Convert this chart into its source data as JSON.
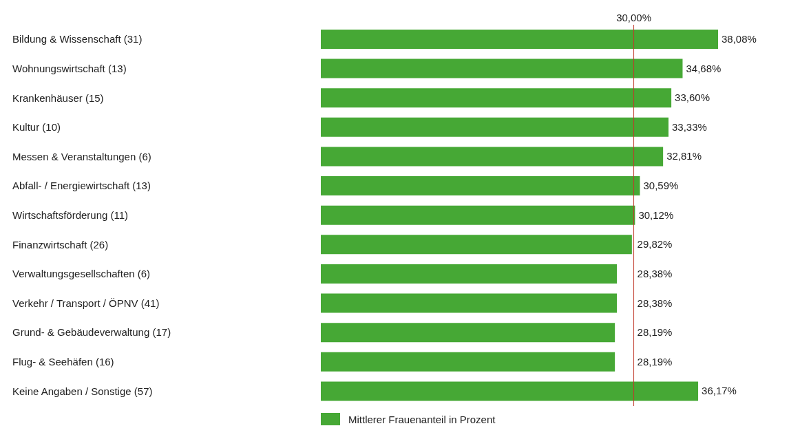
{
  "chart_data": {
    "type": "bar",
    "orientation": "horizontal",
    "categories": [
      "Bildung & Wissenschaft (31)",
      "Wohnungswirtschaft (13)",
      "Krankenhäuser (15)",
      "Kultur (10)",
      "Messen & Veranstaltungen (6)",
      "Abfall- / Energiewirtschaft (13)",
      "Wirtschaftsförderung (11)",
      "Finanzwirtschaft (26)",
      "Verwaltungsgesellschaften (6)",
      "Verkehr / Transport / ÖPNV (41)",
      "Grund- & Gebäudeverwaltung (17)",
      "Flug- & Seehäfen (16)",
      "Keine Angaben / Sonstige (57)"
    ],
    "series": [
      {
        "name": "Mittlerer Frauenanteil in Prozent",
        "color": "#46a835",
        "values": [
          38.08,
          34.68,
          33.6,
          33.33,
          32.81,
          30.59,
          30.12,
          29.82,
          28.38,
          28.38,
          28.19,
          28.19,
          36.17
        ],
        "value_labels": [
          "38,08%",
          "34,68%",
          "33,60%",
          "33,33%",
          "32,81%",
          "30,59%",
          "30,12%",
          "29,82%",
          "28,38%",
          "28,38%",
          "28,19%",
          "28,19%",
          "36,17%"
        ]
      }
    ],
    "tick_labels": "y",
    "grid": false,
    "legend": "bottom",
    "ref_lines": [
      {
        "axis": "x",
        "value": 30,
        "label": "30,00%",
        "color": "#c0392b"
      }
    ]
  }
}
